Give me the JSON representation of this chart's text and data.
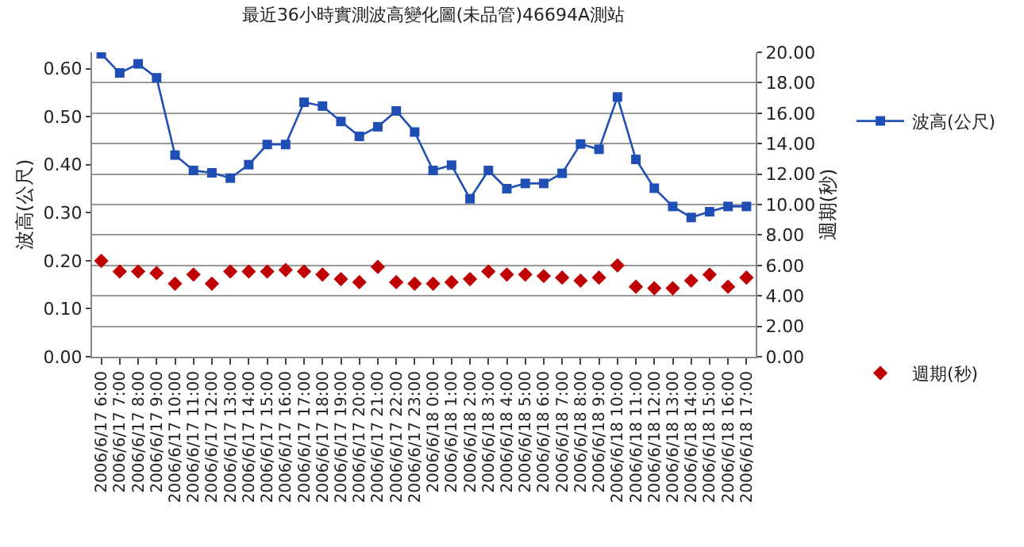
{
  "chart_data": {
    "type": "line",
    "title": "最近36小時實測波高變化圖(未品管)46694A測站",
    "ylabel": "波高(公尺)",
    "y2label": "週期(秒)",
    "categories": [
      "2006/6/17 6:00",
      "2006/6/17 7:00",
      "2006/6/17 8:00",
      "2006/6/17 9:00",
      "2006/6/17 10:00",
      "2006/6/17 11:00",
      "2006/6/17 12:00",
      "2006/6/17 13:00",
      "2006/6/17 14:00",
      "2006/6/17 15:00",
      "2006/6/17 16:00",
      "2006/6/17 17:00",
      "2006/6/17 18:00",
      "2006/6/17 19:00",
      "2006/6/17 20:00",
      "2006/6/17 21:00",
      "2006/6/17 22:00",
      "2006/6/17 23:00",
      "2006/6/18 0:00",
      "2006/6/18 1:00",
      "2006/6/18 2:00",
      "2006/6/18 3:00",
      "2006/6/18 4:00",
      "2006/6/18 5:00",
      "2006/6/18 6:00",
      "2006/6/18 7:00",
      "2006/6/18 8:00",
      "2006/6/18 9:00",
      "2006/6/18 10:00",
      "2006/6/18 11:00",
      "2006/6/18 12:00",
      "2006/6/18 13:00",
      "2006/6/18 14:00",
      "2006/6/18 15:00",
      "2006/6/18 16:00",
      "2006/6/18 17:00"
    ],
    "series": [
      {
        "name": "波高(公尺)",
        "marker": "square",
        "color": "#1f4fb4",
        "values": [
          0.631,
          0.591,
          0.61,
          0.581,
          0.42,
          0.388,
          0.383,
          0.372,
          0.4,
          0.442,
          0.442,
          0.53,
          0.522,
          0.49,
          0.459,
          0.479,
          0.512,
          0.468,
          0.388,
          0.399,
          0.329,
          0.388,
          0.35,
          0.361,
          0.361,
          0.382,
          0.443,
          0.432,
          0.541,
          0.411,
          0.351,
          0.313,
          0.29,
          0.302,
          0.313,
          0.313
        ]
      },
      {
        "name": "週期(秒)",
        "type": "scatter",
        "marker": "diamond",
        "axis": "y2",
        "color": "#c00000",
        "values": [
          6.3,
          5.6,
          5.6,
          5.5,
          4.8,
          5.4,
          4.8,
          5.6,
          5.6,
          5.6,
          5.7,
          5.6,
          5.4,
          5.1,
          4.9,
          5.9,
          4.9,
          4.8,
          4.8,
          4.9,
          5.1,
          5.6,
          5.4,
          5.4,
          5.3,
          5.2,
          5.0,
          5.2,
          6.0,
          4.6,
          4.5,
          4.5,
          5.0,
          5.4,
          4.6,
          5.2
        ]
      }
    ],
    "ylim": [
      0,
      0.634
    ],
    "yticks": [
      {
        "value": 0,
        "label": "0.00"
      },
      {
        "value": 0.1,
        "label": "0.10"
      },
      {
        "value": 0.2,
        "label": "0.20"
      },
      {
        "value": 0.3,
        "label": "0.30"
      },
      {
        "value": 0.4,
        "label": "0.40"
      },
      {
        "value": 0.5,
        "label": "0.50"
      },
      {
        "value": 0.6,
        "label": "0.60"
      }
    ],
    "y2lim": [
      0,
      20
    ],
    "y2ticks": [
      {
        "value": 0,
        "label": "0.00"
      },
      {
        "value": 2,
        "label": "2.00"
      },
      {
        "value": 4,
        "label": "4.00"
      },
      {
        "value": 6,
        "label": "6.00"
      },
      {
        "value": 8,
        "label": "8.00"
      },
      {
        "value": 10,
        "label": "10.00"
      },
      {
        "value": 12,
        "label": "12.00"
      },
      {
        "value": 14,
        "label": "14.00"
      },
      {
        "value": 16,
        "label": "16.00"
      },
      {
        "value": 18,
        "label": "18.00"
      },
      {
        "value": 20,
        "label": "20.00"
      }
    ],
    "grid": "y",
    "legend": "right"
  }
}
